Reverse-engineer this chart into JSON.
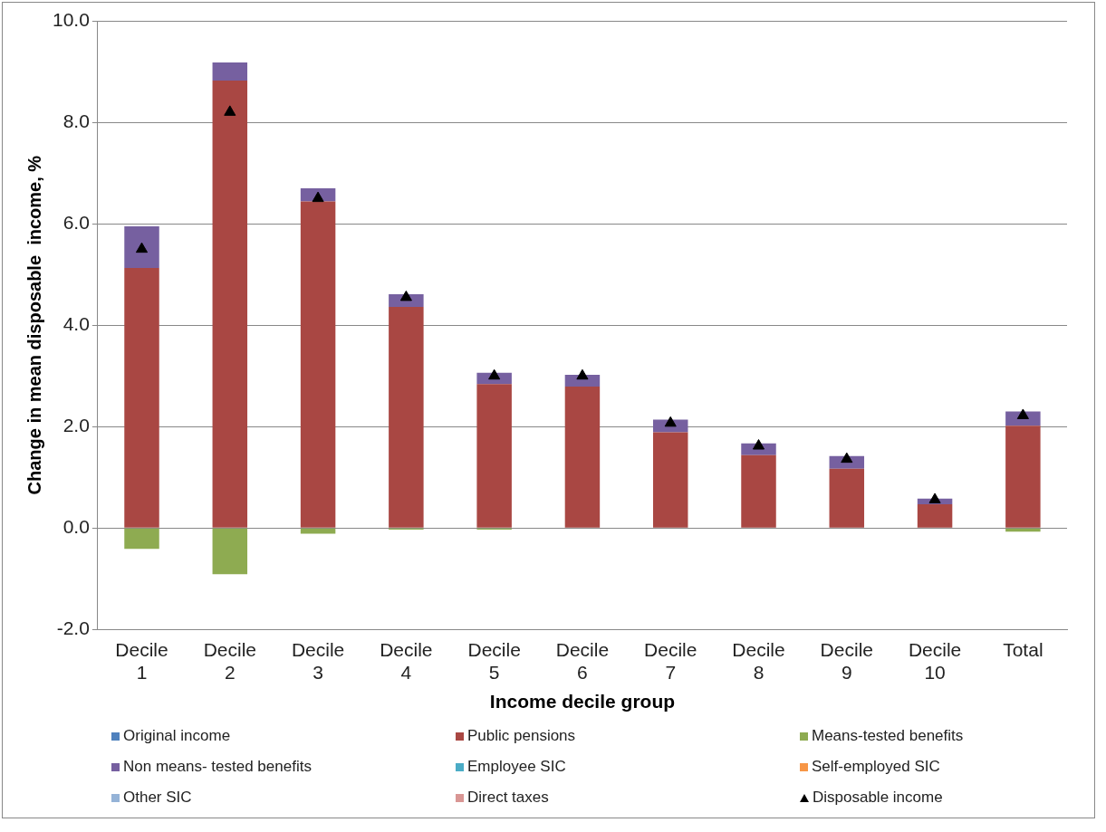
{
  "chart_data": {
    "type": "bar",
    "stacked": true,
    "xlabel": "Income decile group",
    "ylabel": "Change in mean disposable  income, %",
    "categories": [
      "Decile 1",
      "Decile 2",
      "Decile 3",
      "Decile 4",
      "Decile 5",
      "Decile 6",
      "Decile 7",
      "Decile 8",
      "Decile 9",
      "Decile 10",
      "Total"
    ],
    "series": [
      {
        "name": "Original income",
        "color": "#4f81bd",
        "values": [
          0,
          0,
          0,
          0,
          0,
          0,
          0,
          0,
          0,
          0,
          0
        ]
      },
      {
        "name": "Public pensions",
        "color": "#a94743",
        "values": [
          5.13,
          8.82,
          6.44,
          4.36,
          2.84,
          2.79,
          1.89,
          1.44,
          1.17,
          0.47,
          2.02
        ]
      },
      {
        "name": "Means-tested benefits",
        "color": "#8eab51",
        "values": [
          -0.41,
          -0.91,
          -0.11,
          -0.03,
          -0.03,
          0,
          0,
          0,
          0,
          0,
          -0.07
        ]
      },
      {
        "name": "Non means- tested benefits",
        "color": "#7660a0",
        "values": [
          0.82,
          0.36,
          0.26,
          0.25,
          0.22,
          0.23,
          0.25,
          0.23,
          0.25,
          0.11,
          0.28
        ]
      },
      {
        "name": "Employee SIC",
        "color": "#4bacc6",
        "values": [
          0,
          0,
          0,
          0,
          0,
          0,
          0,
          0,
          0,
          0,
          0
        ]
      },
      {
        "name": "Self-employed SIC",
        "color": "#f79646",
        "values": [
          0,
          0,
          0,
          0,
          0,
          0,
          0,
          0,
          0,
          0,
          0
        ]
      },
      {
        "name": "Other SIC",
        "color": "#95b3d7",
        "values": [
          0,
          0,
          0,
          0,
          0,
          0,
          0,
          0,
          0,
          0,
          0
        ]
      },
      {
        "name": "Direct taxes",
        "color": "#d99694",
        "values": [
          0,
          0,
          0,
          0,
          0,
          0,
          0,
          0,
          0,
          0,
          0
        ]
      },
      {
        "name": "Disposable income",
        "type": "scatter",
        "color": "#000000",
        "x": [
          "Decile 1",
          "Decile 2",
          "Decile 3",
          "Decile 4",
          "Decile 5",
          "Decile 6",
          "Decile 7",
          "Decile 8",
          "Decile 9",
          "Decile 10",
          "Total"
        ],
        "values": [
          5.5,
          8.2,
          6.5,
          4.55,
          3.0,
          3.0,
          2.07,
          1.62,
          1.36,
          0.56,
          2.22
        ]
      }
    ],
    "marker": "triangle",
    "ylim": [
      -2,
      10
    ],
    "yticks": [
      {
        "value": -2,
        "label": "-2.0"
      },
      {
        "value": 0,
        "label": "0.0"
      },
      {
        "value": 2,
        "label": "2.0"
      },
      {
        "value": 4,
        "label": "4.0"
      },
      {
        "value": 6,
        "label": "6.0"
      },
      {
        "value": 8,
        "label": "8.0"
      },
      {
        "value": 10,
        "label": "10.0"
      }
    ],
    "grid": "y",
    "legend": "bottom"
  }
}
